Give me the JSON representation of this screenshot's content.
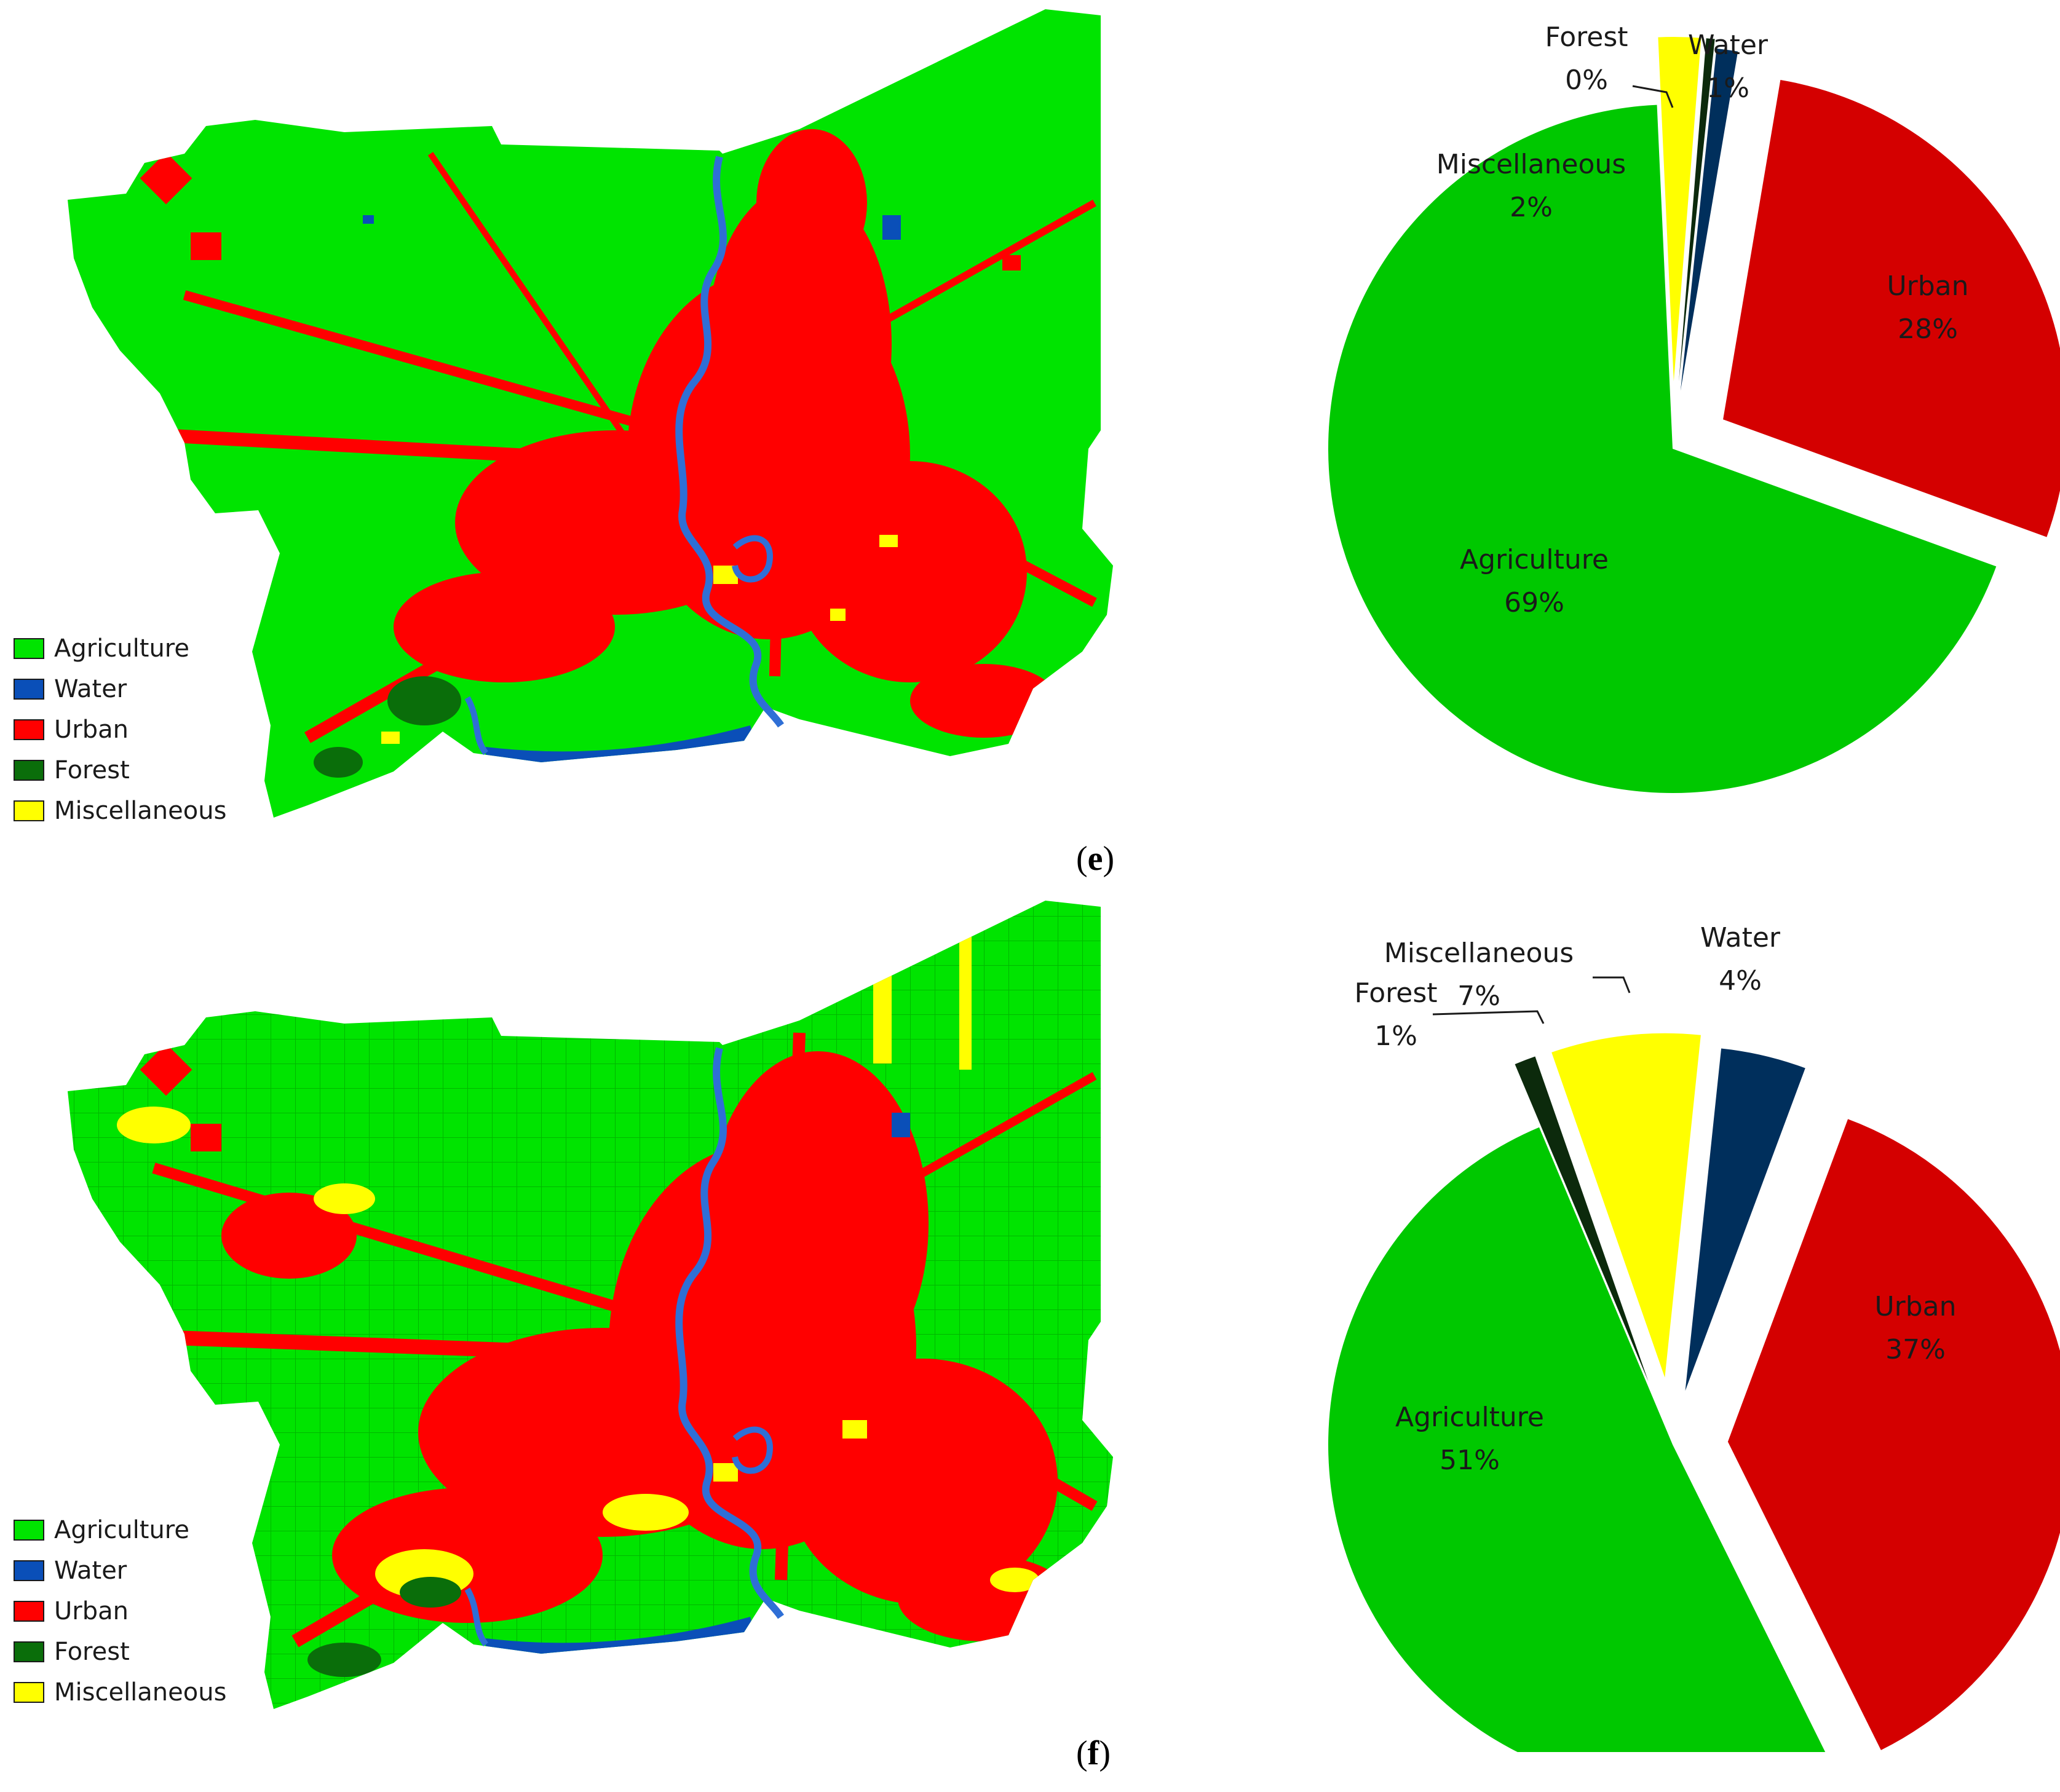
{
  "colors": {
    "agriculture": "#00e400",
    "water": "#0a4fb8",
    "urban": "#ff0000",
    "forest": "#0a6e0a",
    "miscellaneous": "#ffff00",
    "pie_agriculture": "#00c800",
    "pie_urban": "#d40000",
    "pie_water": "#002f5c",
    "pie_forest": "#0c2a0c",
    "pie_miscellaneous": "#ffff00",
    "river": "#2f6fd6"
  },
  "legend": [
    {
      "label": "Agriculture",
      "color": "#00e400"
    },
    {
      "label": "Water",
      "color": "#0a4fb8"
    },
    {
      "label": "Urban",
      "color": "#ff0000"
    },
    {
      "label": "Forest",
      "color": "#0a6e0a"
    },
    {
      "label": "Miscellaneous",
      "color": "#ffff00"
    }
  ],
  "panels": [
    {
      "id": "e",
      "label_open": "(",
      "label_letter": "e",
      "label_close": ")",
      "map_name": "land-use-map-e"
    },
    {
      "id": "f",
      "label_open": "(",
      "label_letter": "f",
      "label_close": ")",
      "map_name": "land-use-map-f"
    }
  ],
  "chart_data": [
    {
      "type": "pie",
      "panel": "e",
      "slices": [
        {
          "name": "Water",
          "label": "Water",
          "value_label": "1%",
          "value": 1,
          "color": "#002f5c"
        },
        {
          "name": "Urban",
          "label": "Urban",
          "value_label": "28%",
          "value": 28,
          "color": "#d40000"
        },
        {
          "name": "Agriculture",
          "label": "Agriculture",
          "value_label": "69%",
          "value": 69,
          "color": "#00c800"
        },
        {
          "name": "Miscellaneous",
          "label": "Miscellaneous",
          "value_label": "2%",
          "value": 2,
          "color": "#ffff00"
        },
        {
          "name": "Forest",
          "label": "Forest",
          "value_label": "0%",
          "value": 0.4,
          "color": "#0c2a0c"
        }
      ]
    },
    {
      "type": "pie",
      "panel": "f",
      "slices": [
        {
          "name": "Water",
          "label": "Water",
          "value_label": "4%",
          "value": 4,
          "color": "#002f5c"
        },
        {
          "name": "Urban",
          "label": "Urban",
          "value_label": "37%",
          "value": 37,
          "color": "#d40000"
        },
        {
          "name": "Agriculture",
          "label": "Agriculture",
          "value_label": "51%",
          "value": 51,
          "color": "#00c800"
        },
        {
          "name": "Forest",
          "label": "Forest",
          "value_label": "1%",
          "value": 1,
          "color": "#0c2a0c"
        },
        {
          "name": "Miscellaneous",
          "label": "Miscellaneous",
          "value_label": "7%",
          "value": 7,
          "color": "#ffff00"
        }
      ]
    }
  ]
}
